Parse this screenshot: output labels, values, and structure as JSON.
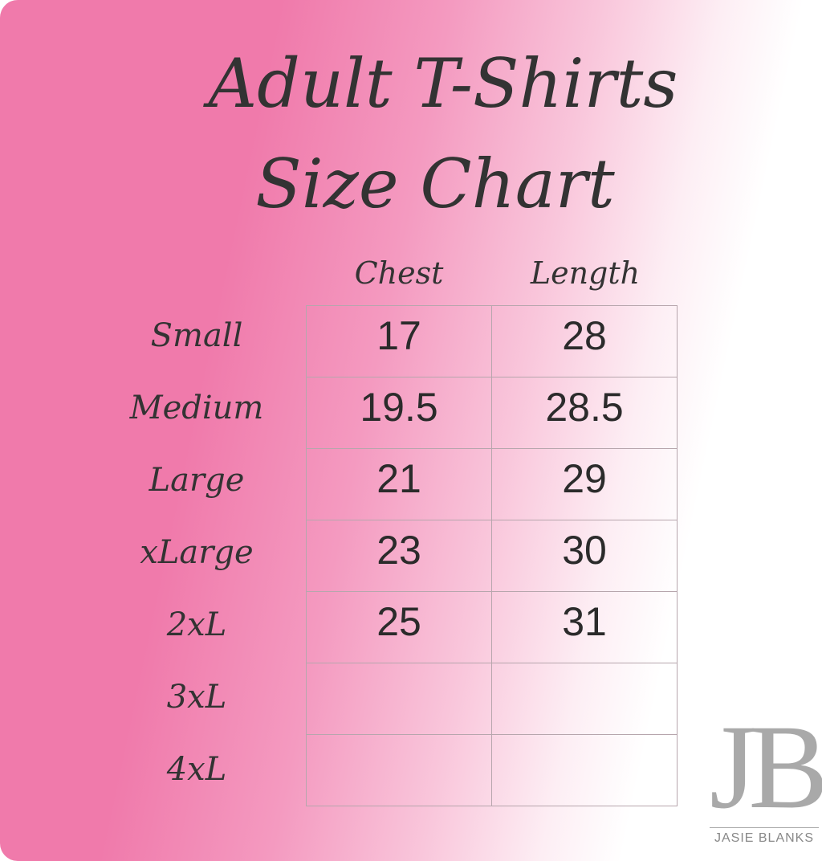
{
  "title_line1": "Adult T-Shirts",
  "title_line2": "Size Chart",
  "columns": [
    "Chest",
    "Length"
  ],
  "rows": [
    {
      "size": "Small",
      "chest": "17",
      "length": "28"
    },
    {
      "size": "Medium",
      "chest": "19.5",
      "length": "28.5"
    },
    {
      "size": "Large",
      "chest": "21",
      "length": "29"
    },
    {
      "size": "xLarge",
      "chest": "23",
      "length": "30"
    },
    {
      "size": "2xL",
      "chest": "25",
      "length": "31"
    },
    {
      "size": "3xL",
      "chest": "",
      "length": ""
    },
    {
      "size": "4xL",
      "chest": "",
      "length": ""
    }
  ],
  "logo": {
    "mark": "JB",
    "name": "JASIE BLANKS"
  },
  "colors": {
    "pink": "#f07aab",
    "text": "#333333",
    "logo": "#a9a9a9"
  }
}
